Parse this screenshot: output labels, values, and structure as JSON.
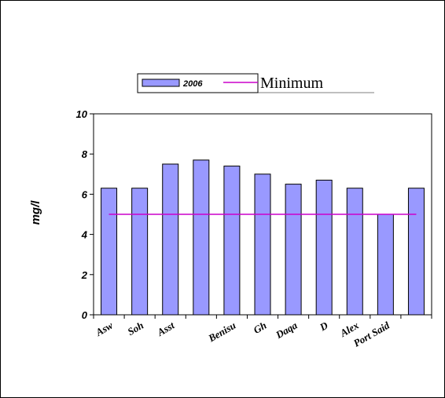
{
  "chart_data": {
    "type": "bar",
    "categories": [
      "Asw",
      "Soh",
      "Asst",
      "",
      "Benisu",
      "Gh",
      "Daqa",
      "D",
      "Alex",
      "Port Said",
      ""
    ],
    "series": [
      {
        "name": "2006",
        "values": [
          6.3,
          6.3,
          7.5,
          7.7,
          7.4,
          7.0,
          6.5,
          6.7,
          6.3,
          5.0,
          6.3
        ]
      }
    ],
    "reference_line": {
      "name": "Minimum",
      "value": 5.0
    },
    "ylabel": "mg/l",
    "xlabel": "",
    "ylim": [
      0,
      10
    ],
    "yticks": [
      0,
      2,
      4,
      6,
      8,
      10
    ],
    "grid": false,
    "legend": "top-center",
    "colors": {
      "bar_fill": "#9999ff",
      "bar_stroke": "#000000",
      "minimum_line": "#cc00cc"
    }
  }
}
